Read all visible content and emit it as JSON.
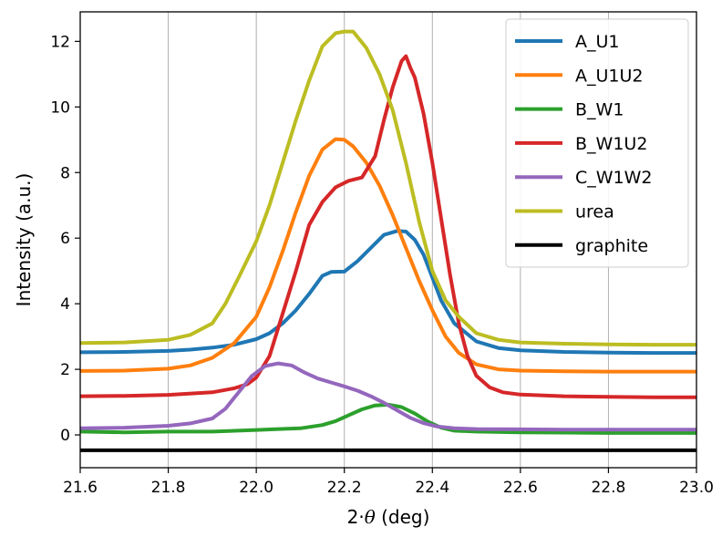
{
  "chart_data": {
    "type": "line",
    "xlabel": "2·θ (deg)",
    "xlabel_parts": [
      "2·",
      "θ",
      " (deg)"
    ],
    "ylabel": "Intensity (a.u.)",
    "xlim": [
      21.6,
      23.0
    ],
    "ylim": [
      -1.0,
      12.9
    ],
    "xticks": [
      21.6,
      21.8,
      22.0,
      22.2,
      22.4,
      22.6,
      22.8,
      23.0
    ],
    "xtick_labels": [
      "21.6",
      "21.8",
      "22.0",
      "22.2",
      "22.4",
      "22.6",
      "22.8",
      "23.0"
    ],
    "yticks": [
      0,
      2,
      4,
      6,
      8,
      10,
      12
    ],
    "ytick_labels": [
      "0",
      "2",
      "4",
      "6",
      "8",
      "10",
      "12"
    ],
    "grid": "vertical",
    "legend_position": "top-right",
    "series": [
      {
        "name": "A_U1",
        "color": "#1f77b4",
        "x": [
          21.6,
          21.7,
          21.8,
          21.85,
          21.9,
          21.95,
          22.0,
          22.03,
          22.06,
          22.09,
          22.12,
          22.15,
          22.17,
          22.2,
          22.23,
          22.26,
          22.29,
          22.32,
          22.34,
          22.36,
          22.38,
          22.4,
          22.42,
          22.45,
          22.5,
          22.55,
          22.6,
          22.7,
          22.8,
          22.9,
          23.0
        ],
        "y": [
          2.52,
          2.53,
          2.56,
          2.6,
          2.66,
          2.75,
          2.92,
          3.1,
          3.4,
          3.8,
          4.3,
          4.85,
          4.97,
          4.98,
          5.3,
          5.7,
          6.1,
          6.22,
          6.2,
          5.95,
          5.5,
          4.8,
          4.1,
          3.4,
          2.85,
          2.65,
          2.58,
          2.53,
          2.51,
          2.5,
          2.5
        ]
      },
      {
        "name": "A_U1U2",
        "color": "#ff7f0e",
        "x": [
          21.6,
          21.7,
          21.8,
          21.85,
          21.9,
          21.95,
          22.0,
          22.03,
          22.06,
          22.09,
          22.12,
          22.15,
          22.18,
          22.2,
          22.22,
          22.25,
          22.28,
          22.31,
          22.34,
          22.37,
          22.4,
          22.43,
          22.46,
          22.5,
          22.55,
          22.6,
          22.7,
          22.8,
          22.9,
          23.0
        ],
        "y": [
          1.95,
          1.96,
          2.02,
          2.12,
          2.35,
          2.8,
          3.6,
          4.5,
          5.6,
          6.8,
          7.9,
          8.7,
          9.02,
          9.0,
          8.8,
          8.3,
          7.6,
          6.7,
          5.7,
          4.7,
          3.8,
          3.0,
          2.5,
          2.15,
          2.0,
          1.96,
          1.94,
          1.93,
          1.93,
          1.93
        ]
      },
      {
        "name": "B_W1",
        "color": "#2ca02c",
        "x": [
          21.6,
          21.7,
          21.8,
          21.9,
          22.0,
          22.05,
          22.1,
          22.15,
          22.18,
          22.21,
          22.24,
          22.27,
          22.3,
          22.33,
          22.36,
          22.39,
          22.42,
          22.45,
          22.5,
          22.6,
          22.7,
          22.8,
          22.9,
          23.0
        ],
        "y": [
          0.1,
          0.08,
          0.1,
          0.1,
          0.15,
          0.18,
          0.2,
          0.3,
          0.42,
          0.6,
          0.78,
          0.9,
          0.92,
          0.85,
          0.65,
          0.4,
          0.22,
          0.13,
          0.1,
          0.08,
          0.07,
          0.06,
          0.06,
          0.06
        ]
      },
      {
        "name": "B_W1U2",
        "color": "#d62728",
        "x": [
          21.6,
          21.7,
          21.8,
          21.9,
          21.95,
          21.98,
          22.0,
          22.03,
          22.06,
          22.09,
          22.12,
          22.15,
          22.18,
          22.21,
          22.24,
          22.27,
          22.29,
          22.31,
          22.33,
          22.34,
          22.35,
          22.36,
          22.38,
          22.4,
          22.42,
          22.44,
          22.46,
          22.48,
          22.5,
          22.53,
          22.56,
          22.6,
          22.7,
          22.8,
          22.9,
          23.0
        ],
        "y": [
          1.18,
          1.19,
          1.22,
          1.3,
          1.42,
          1.55,
          1.75,
          2.4,
          3.7,
          5.0,
          6.4,
          7.1,
          7.55,
          7.75,
          7.85,
          8.5,
          9.6,
          10.6,
          11.4,
          11.55,
          11.2,
          10.9,
          9.8,
          8.3,
          6.6,
          4.9,
          3.4,
          2.4,
          1.8,
          1.45,
          1.3,
          1.23,
          1.18,
          1.16,
          1.15,
          1.15
        ]
      },
      {
        "name": "C_W1W2",
        "color": "#9467bd",
        "x": [
          21.6,
          21.7,
          21.8,
          21.85,
          21.9,
          21.93,
          21.96,
          21.99,
          22.02,
          22.05,
          22.08,
          22.11,
          22.14,
          22.17,
          22.2,
          22.23,
          22.26,
          22.29,
          22.32,
          22.35,
          22.38,
          22.41,
          22.45,
          22.5,
          22.6,
          22.7,
          22.8,
          22.9,
          23.0
        ],
        "y": [
          0.2,
          0.22,
          0.28,
          0.35,
          0.5,
          0.8,
          1.3,
          1.8,
          2.1,
          2.18,
          2.12,
          1.9,
          1.72,
          1.6,
          1.48,
          1.35,
          1.18,
          0.98,
          0.75,
          0.52,
          0.36,
          0.26,
          0.2,
          0.18,
          0.17,
          0.16,
          0.16,
          0.16,
          0.16
        ]
      },
      {
        "name": "urea",
        "color": "#bcbd22",
        "x": [
          21.6,
          21.7,
          21.8,
          21.85,
          21.9,
          21.93,
          21.96,
          22.0,
          22.03,
          22.06,
          22.09,
          22.12,
          22.15,
          22.18,
          22.2,
          22.22,
          22.25,
          22.28,
          22.31,
          22.34,
          22.37,
          22.4,
          22.43,
          22.46,
          22.5,
          22.55,
          22.6,
          22.7,
          22.8,
          22.9,
          23.0
        ],
        "y": [
          2.8,
          2.82,
          2.9,
          3.05,
          3.4,
          4.0,
          4.8,
          5.9,
          7.0,
          8.3,
          9.6,
          10.8,
          11.85,
          12.25,
          12.3,
          12.3,
          11.8,
          11.0,
          9.9,
          8.3,
          6.5,
          5.0,
          4.1,
          3.6,
          3.1,
          2.9,
          2.82,
          2.78,
          2.76,
          2.75,
          2.75
        ]
      },
      {
        "name": "graphite",
        "color": "#000000",
        "x": [
          21.6,
          23.0
        ],
        "y": [
          -0.47,
          -0.47
        ]
      }
    ]
  }
}
